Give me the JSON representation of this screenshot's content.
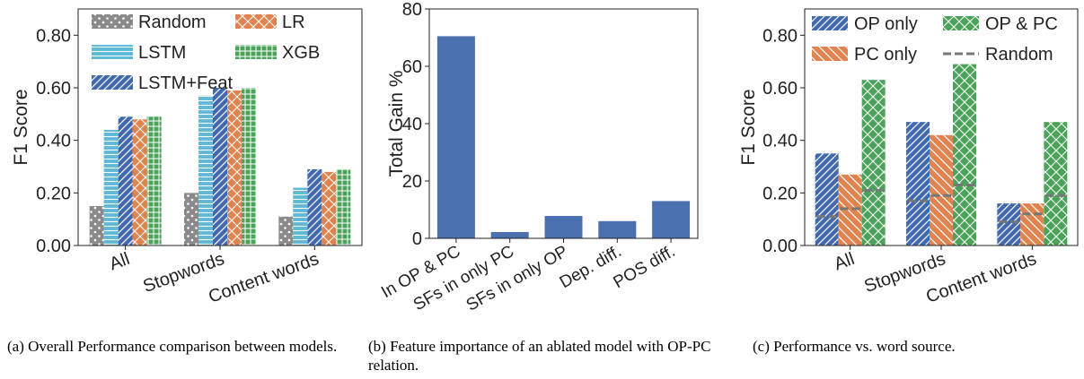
{
  "colors": {
    "random": "#8a8a8a",
    "lr": "#e0834e",
    "lstm": "#5fb8d6",
    "xgb": "#4ba35a",
    "lstmfeat": "#4169b0",
    "gain": "#4a70b0",
    "op_only": "#4169b0",
    "pc_only": "#e0834e",
    "op_pc": "#4ba35a",
    "random_line": "#777777"
  },
  "captions": {
    "a": "(a) Overall Performance comparison between models.",
    "b": "(b) Feature importance of an ablated model with OP-PC relation.",
    "c": "(c) Performance vs. word source."
  },
  "chart_data": [
    {
      "type": "bar",
      "title": "",
      "ylabel": "F1 Score",
      "xlabel": "",
      "ylim": [
        0,
        0.9
      ],
      "yticks": [
        "0.00",
        "0.20",
        "0.40",
        "0.60",
        "0.80"
      ],
      "categories": [
        "All",
        "Stopwords",
        "Content words"
      ],
      "legend": "top-left, 2 columns",
      "series": [
        {
          "name": "Random",
          "values": [
            0.15,
            0.2,
            0.11
          ]
        },
        {
          "name": "LSTM",
          "values": [
            0.44,
            0.57,
            0.22
          ]
        },
        {
          "name": "LSTM+Feat",
          "values": [
            0.49,
            0.6,
            0.29
          ]
        },
        {
          "name": "LR",
          "values": [
            0.48,
            0.59,
            0.28
          ]
        },
        {
          "name": "XGB",
          "values": [
            0.49,
            0.6,
            0.29
          ]
        }
      ]
    },
    {
      "type": "bar",
      "title": "",
      "ylabel": "Total Gain %",
      "xlabel": "",
      "ylim": [
        0,
        80
      ],
      "yticks": [
        "0",
        "20",
        "40",
        "60",
        "80"
      ],
      "categories": [
        "In OP & PC",
        "SFs in only PC",
        "SFs in only OP",
        "Dep. diff.",
        "POS diff."
      ],
      "values": [
        70.5,
        2.2,
        7.8,
        6.0,
        13.0
      ]
    },
    {
      "type": "bar",
      "title": "",
      "ylabel": "F1 Score",
      "xlabel": "",
      "ylim": [
        0,
        0.9
      ],
      "yticks": [
        "0.00",
        "0.20",
        "0.40",
        "0.60",
        "0.80"
      ],
      "categories": [
        "All",
        "Stopwords",
        "Content words"
      ],
      "legend": "top, 2 columns",
      "series": [
        {
          "name": "OP only",
          "values": [
            0.35,
            0.47,
            0.16
          ],
          "random": [
            0.11,
            0.17,
            0.09
          ]
        },
        {
          "name": "PC only",
          "values": [
            0.27,
            0.42,
            0.16
          ],
          "random": [
            0.14,
            0.19,
            0.12
          ]
        },
        {
          "name": "OP & PC",
          "values": [
            0.63,
            0.69,
            0.47
          ],
          "random": [
            0.21,
            0.23,
            0.19
          ]
        }
      ],
      "legend_entries": [
        "OP only",
        "OP & PC",
        "PC only",
        "Random"
      ]
    }
  ]
}
